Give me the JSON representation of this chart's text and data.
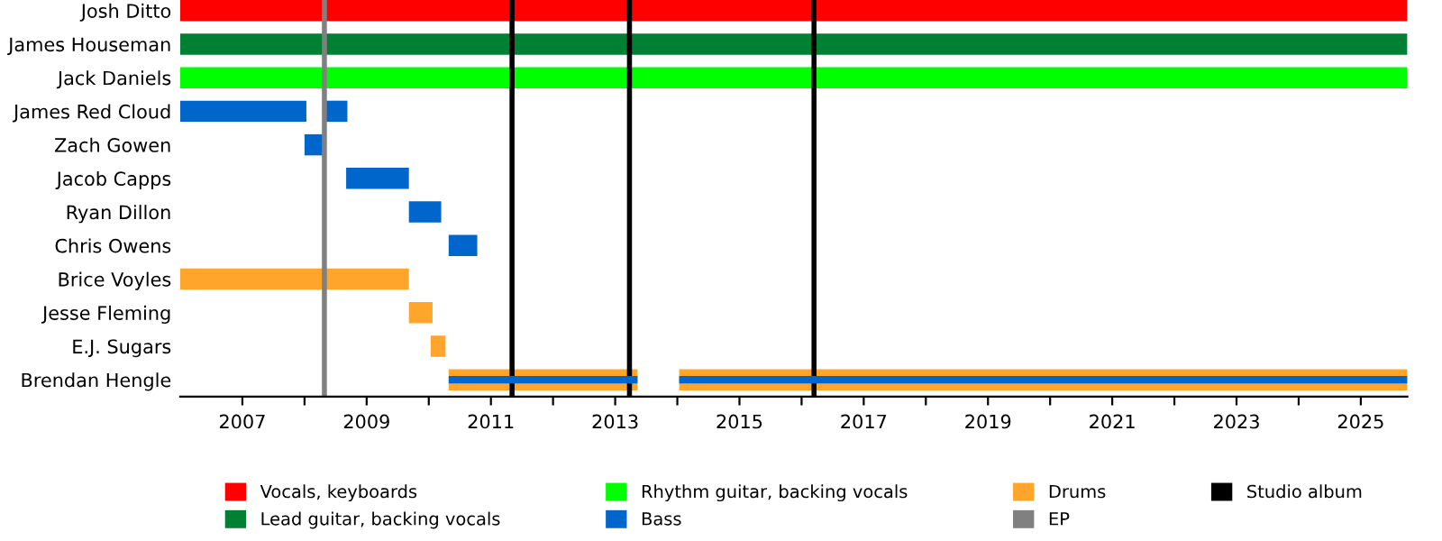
{
  "chart_data": {
    "type": "bar",
    "orientation": "horizontal",
    "categories": [
      "Josh Ditto",
      "James Houseman",
      "Jack Daniels",
      "James Red Cloud",
      "Zach Gowen",
      "Jacob Capps",
      "Ryan Dillon",
      "Chris Owens",
      "Brice Voyles",
      "Jesse Fleming",
      "E.J. Sugars",
      "Brendan Hengle"
    ],
    "series": [
      {
        "name": "Vocals, keyboards",
        "color": "#ff0000",
        "base": [
          2006,
          null,
          null,
          null,
          null,
          null,
          null,
          null,
          null,
          null,
          null,
          null
        ],
        "values": [
          19.75,
          null,
          null,
          null,
          null,
          null,
          null,
          null,
          null,
          null,
          null,
          null
        ]
      },
      {
        "name": "Lead guitar, backing vocals",
        "color": "#008033",
        "base": [
          null,
          2006,
          null,
          null,
          null,
          null,
          null,
          null,
          null,
          null,
          null,
          null
        ],
        "values": [
          null,
          19.75,
          null,
          null,
          null,
          null,
          null,
          null,
          null,
          null,
          null,
          null
        ]
      },
      {
        "name": "Rhythm guitar, backing vocals",
        "color": "#00ff00",
        "base": [
          null,
          null,
          2006,
          null,
          null,
          null,
          null,
          null,
          null,
          null,
          null,
          null
        ],
        "values": [
          null,
          null,
          19.75,
          null,
          null,
          null,
          null,
          null,
          null,
          null,
          null,
          null
        ]
      },
      {
        "name": "Bass",
        "color": "#0066cc",
        "base": [
          null,
          null,
          null,
          2006,
          2008.0,
          2008.67,
          2009.68,
          2010.32,
          null,
          null,
          null,
          null
        ],
        "values": [
          null,
          null,
          null,
          2.03,
          0.35,
          1.01,
          0.52,
          0.46,
          null,
          null,
          null,
          null
        ]
      },
      {
        "name": "Drums",
        "color": "#ffa52c",
        "base": [
          null,
          null,
          null,
          null,
          null,
          null,
          null,
          null,
          2006,
          2009.68,
          2010.03,
          2010.32
        ],
        "values": [
          null,
          null,
          null,
          null,
          null,
          null,
          null,
          null,
          3.68,
          0.38,
          0.24,
          3.04
        ]
      },
      {
        "color": "#ffa52c",
        "base": [
          null,
          null,
          null,
          null,
          null,
          null,
          null,
          null,
          null,
          null,
          null,
          2014.03
        ],
        "values": [
          null,
          null,
          null,
          null,
          null,
          null,
          null,
          null,
          null,
          null,
          null,
          11.72
        ]
      },
      {
        "color": "#0066cc",
        "base": [
          null,
          null,
          null,
          2008.32,
          null,
          null,
          null,
          null,
          null,
          null,
          null,
          2010.32
        ],
        "values": [
          null,
          null,
          null,
          0.37,
          null,
          null,
          null,
          null,
          null,
          null,
          null,
          3.04
        ]
      },
      {
        "color": "#0066cc",
        "base": [
          null,
          null,
          null,
          null,
          null,
          null,
          null,
          null,
          null,
          null,
          null,
          2014.03
        ],
        "values": [
          null,
          null,
          null,
          null,
          null,
          null,
          null,
          null,
          null,
          null,
          null,
          11.72
        ]
      }
    ],
    "xlim": [
      2006,
      2025.75
    ],
    "xticks": [
      2007,
      {
        "value": 2008,
        "label": null
      },
      2009,
      {
        "value": 2010,
        "label": null
      },
      2011,
      {
        "value": 2012,
        "label": null
      },
      2013,
      {
        "value": 2014,
        "label": null
      },
      2015,
      {
        "value": 2016,
        "label": null
      },
      2017,
      {
        "value": 2018,
        "label": null
      },
      2019,
      {
        "value": 2020,
        "label": null
      },
      2021,
      {
        "value": 2022,
        "label": null
      },
      2023,
      {
        "value": 2024,
        "label": null
      },
      2025
    ],
    "ref_lines": [
      {
        "axis": "x",
        "value": 2008.32,
        "label": "EP",
        "color": "#808080"
      },
      {
        "axis": "x",
        "value": 2011.34,
        "label": "Studio album",
        "color": "#000000"
      },
      {
        "axis": "x",
        "value": 2013.23,
        "color": "#000000"
      },
      {
        "axis": "x",
        "value": 2016.2,
        "color": "#000000"
      }
    ],
    "legend": "bottom",
    "grid": false
  }
}
